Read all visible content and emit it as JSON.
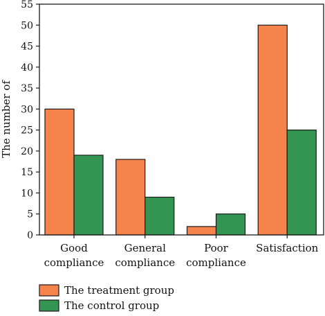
{
  "chart_data": {
    "type": "bar",
    "title": "",
    "ylabel": "The number of",
    "xlabel": "",
    "ylim": [
      0,
      55
    ],
    "yticks": [
      0,
      5,
      10,
      15,
      20,
      25,
      30,
      35,
      40,
      45,
      50,
      55
    ],
    "grid": false,
    "legend_position": "bottom-left",
    "categories": [
      [
        "Good",
        "compliance"
      ],
      [
        "General",
        "compliance"
      ],
      [
        "Poor",
        "compliance"
      ],
      [
        "Satisfaction"
      ]
    ],
    "series": [
      {
        "name": "The treatment group",
        "color": "#F5834B",
        "values": [
          30,
          18,
          2,
          50
        ]
      },
      {
        "name": "The control group",
        "color": "#349552",
        "values": [
          19,
          9,
          5,
          25
        ]
      }
    ]
  }
}
